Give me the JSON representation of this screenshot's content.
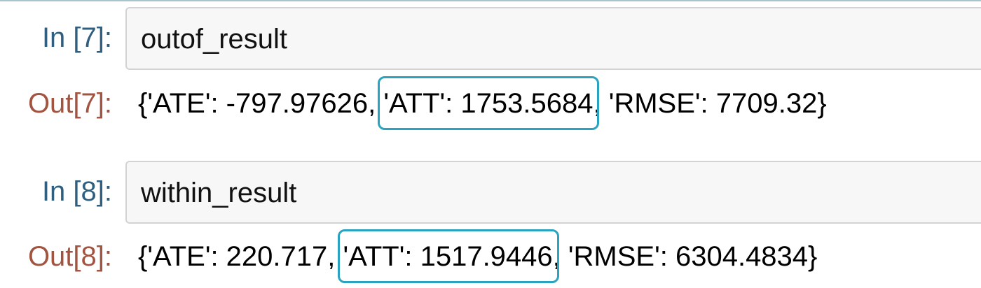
{
  "theme": {
    "in_prompt_color": "#2f5f80",
    "out_prompt_color": "#a25440",
    "highlight_color": "#29a3bf"
  },
  "cells": [
    {
      "in_prompt": "In [7]:",
      "code": "outof_result",
      "out_prompt": "Out[7]:",
      "output_before": "{'ATE': -797.97626, ",
      "output_highlight": "'ATT': 1753.5684",
      "output_after": ", 'RMSE': 7709.32}"
    },
    {
      "in_prompt": "In [8]:",
      "code": "within_result",
      "out_prompt": "Out[8]:",
      "output_before": "{'ATE': 220.717, ",
      "output_highlight": "'ATT': 1517.9446",
      "output_after": ", 'RMSE': 6304.4834}"
    }
  ]
}
